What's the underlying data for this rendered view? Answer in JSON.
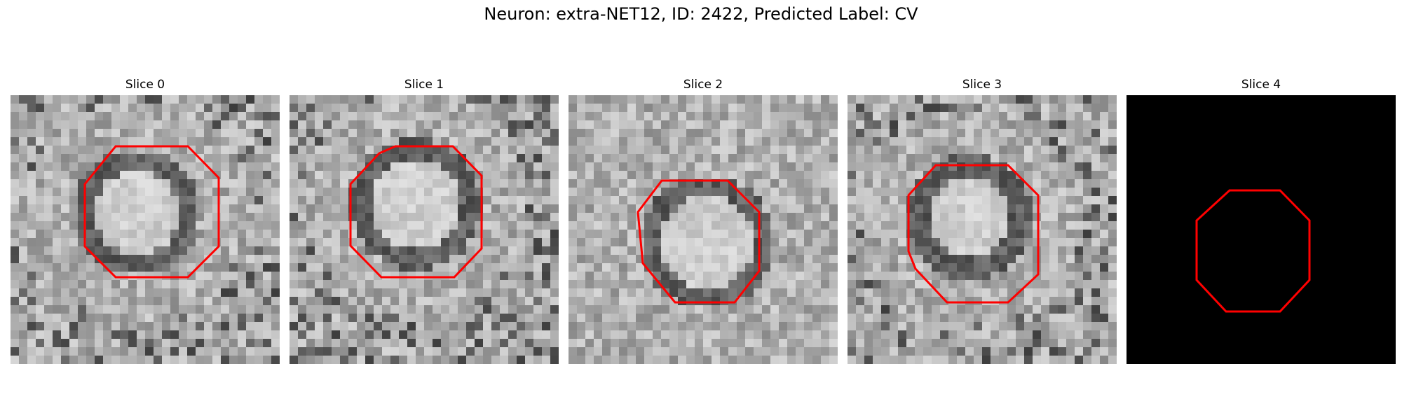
{
  "figure": {
    "title": "Neuron: extra-NET12, ID: 2422, Predicted Label: CV"
  },
  "panels": [
    {
      "title": "Slice 0"
    },
    {
      "title": "Slice 1"
    },
    {
      "title": "Slice 2"
    },
    {
      "title": "Slice 3"
    },
    {
      "title": "Slice 4"
    }
  ],
  "colors": {
    "outline": "#ff0000",
    "background": "#ffffff",
    "empty_slice": "#000000"
  }
}
